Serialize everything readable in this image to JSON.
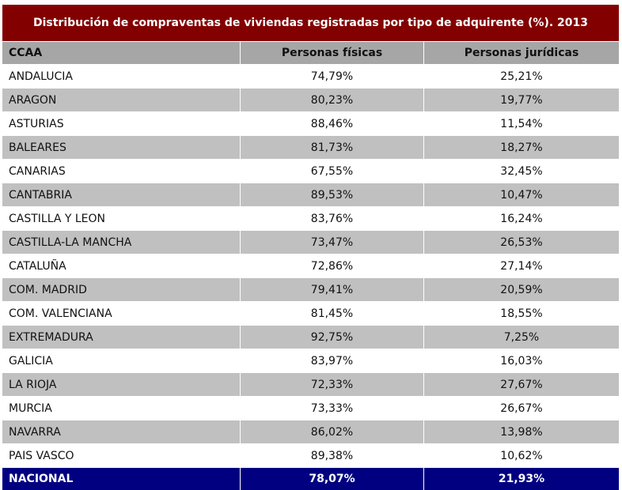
{
  "chart_data": {
    "type": "table",
    "title": "Distribución de compraventas de viviendas registradas por tipo de adquirente (%). 2013",
    "columns": [
      "CCAA",
      "Personas físicas",
      "Personas jurídicas"
    ],
    "rows": [
      [
        "ANDALUCIA",
        "74,79%",
        "25,21%"
      ],
      [
        "ARAGON",
        "80,23%",
        "19,77%"
      ],
      [
        "ASTURIAS",
        "88,46%",
        "11,54%"
      ],
      [
        "BALEARES",
        "81,73%",
        "18,27%"
      ],
      [
        "CANARIAS",
        "67,55%",
        "32,45%"
      ],
      [
        "CANTABRIA",
        "89,53%",
        "10,47%"
      ],
      [
        "CASTILLA Y LEON",
        "83,76%",
        "16,24%"
      ],
      [
        "CASTILLA-LA MANCHA",
        "73,47%",
        "26,53%"
      ],
      [
        "CATALUÑA",
        "72,86%",
        "27,14%"
      ],
      [
        "COM. MADRID",
        "79,41%",
        "20,59%"
      ],
      [
        "COM. VALENCIANA",
        "81,45%",
        "18,55%"
      ],
      [
        "EXTREMADURA",
        "92,75%",
        "7,25%"
      ],
      [
        "GALICIA",
        "83,97%",
        "16,03%"
      ],
      [
        "LA RIOJA",
        "72,33%",
        "27,67%"
      ],
      [
        "MURCIA",
        "73,33%",
        "26,67%"
      ],
      [
        "NAVARRA",
        "86,02%",
        "13,98%"
      ],
      [
        "PAIS VASCO",
        "89,38%",
        "10,62%"
      ]
    ],
    "total": [
      "NACIONAL",
      "78,07%",
      "21,93%"
    ],
    "colors": {
      "title_bg": "#820000",
      "header_bg": "#a6a6a6",
      "alt_row_bg": "#c0c0c0",
      "total_bg": "#000080"
    }
  }
}
